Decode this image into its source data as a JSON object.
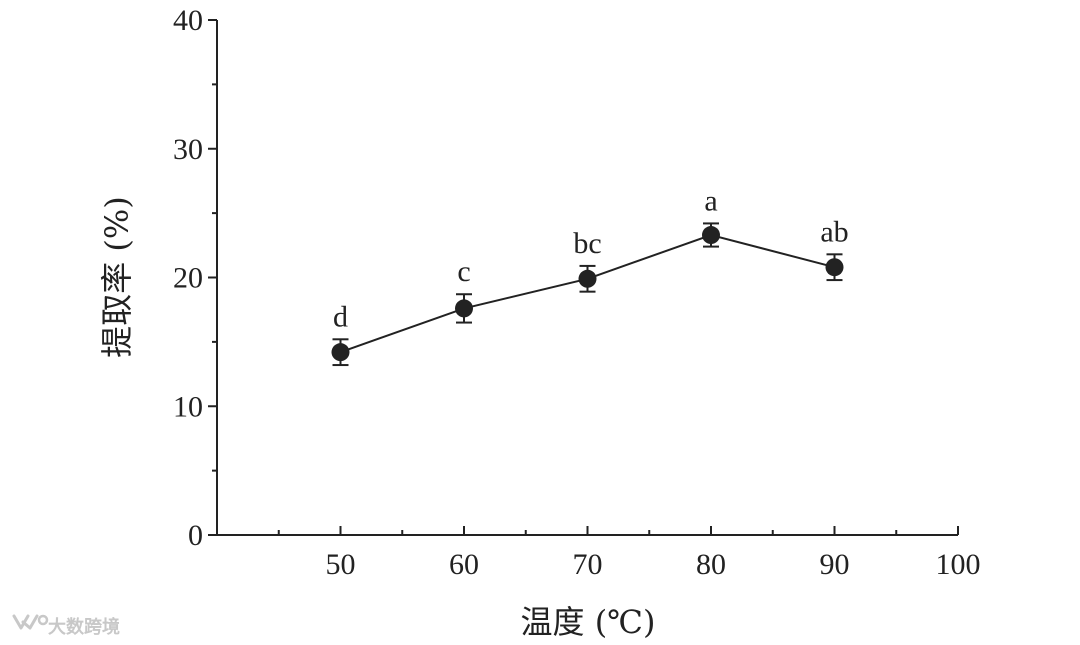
{
  "chart_data": {
    "type": "line",
    "title": "",
    "xlabel": "温度 (℃)",
    "ylabel": "提取率 (%)",
    "xlim": [
      40,
      100
    ],
    "ylim": [
      0,
      40
    ],
    "x_ticks": [
      50,
      60,
      70,
      80,
      90,
      100
    ],
    "x_tick_labels": [
      "50",
      "60",
      "70",
      "80",
      "90",
      "100"
    ],
    "y_ticks": [
      0,
      10,
      20,
      30,
      40
    ],
    "y_tick_labels": [
      "0",
      "10",
      "20",
      "30",
      "40"
    ],
    "grid": false,
    "series": [
      {
        "x": [
          50,
          60,
          70,
          80,
          90
        ],
        "y": [
          14.2,
          17.6,
          19.9,
          23.3,
          20.8
        ],
        "error": [
          1.0,
          1.1,
          1.0,
          0.9,
          1.0
        ],
        "labels": [
          "d",
          "c",
          "bc",
          "a",
          "ab"
        ],
        "color": "#222222",
        "marker": "circle"
      }
    ]
  },
  "watermark": {
    "text": "大数跨境",
    "icon": "wechat-channel-icon",
    "color": "#c8c8c8"
  }
}
